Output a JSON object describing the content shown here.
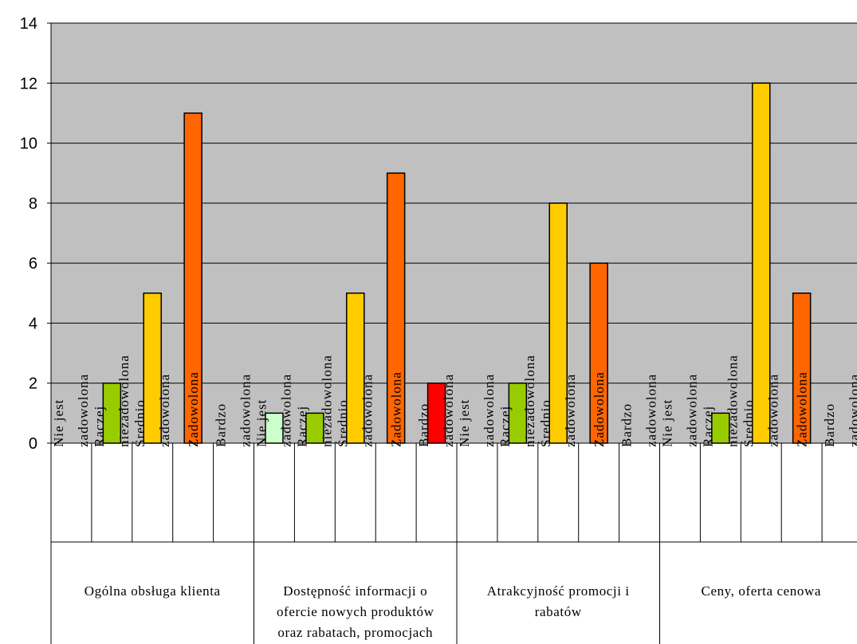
{
  "chart_data": {
    "type": "bar",
    "ylim": [
      0,
      14
    ],
    "yticks": [
      "0",
      "2",
      "4",
      "6",
      "8",
      "10",
      "12",
      "14"
    ],
    "grid": true,
    "plot_background": "#c0c0c0",
    "categories": [
      "Nie jest zadowolona",
      "Raczej niezadowolona",
      "Średnio zadowolona",
      "Zadowolona",
      "Bardzo zadowolona"
    ],
    "category_label_lines": [
      [
        "Nie jest",
        "zadowolona"
      ],
      [
        "Raczej",
        "niezadowolona"
      ],
      [
        "Średnio",
        "zadowolona"
      ],
      [
        "Zadowolona"
      ],
      [
        "Bardzo",
        "zadowolona"
      ]
    ],
    "category_colors": [
      "#ccffcc",
      "#99cc00",
      "#ffcc00",
      "#ff6600",
      "#ff0000"
    ],
    "groups": [
      {
        "label_lines": [
          "Ogólna obsługa klienta"
        ],
        "values": [
          0,
          2,
          5,
          11,
          0
        ]
      },
      {
        "label_lines": [
          "Dostępność informacji o",
          "ofercie nowych produktów",
          "oraz rabatach, promocjach"
        ],
        "values": [
          1,
          1,
          5,
          9,
          2
        ]
      },
      {
        "label_lines": [
          "Atrakcyjność promocji i",
          "rabatów"
        ],
        "values": [
          0,
          2,
          8,
          6,
          0
        ]
      },
      {
        "label_lines": [
          "Ceny, oferta cenowa"
        ],
        "values": [
          0,
          1,
          12,
          5,
          0
        ]
      }
    ]
  }
}
